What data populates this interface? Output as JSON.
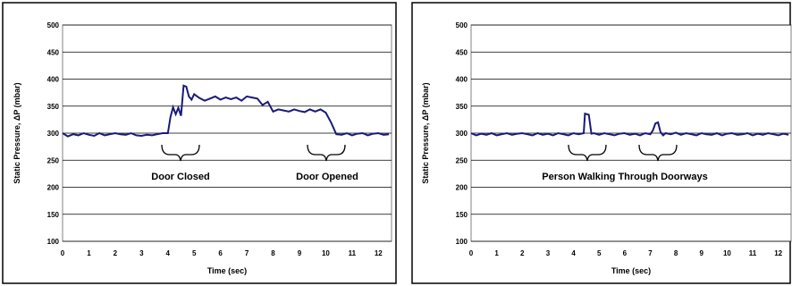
{
  "chart_data": [
    {
      "type": "line",
      "xlabel": "Time (sec)",
      "ylabel": "Static Pressure, ΔP (mbar)",
      "xlim": [
        0,
        12.5
      ],
      "ylim": [
        100,
        500
      ],
      "xticks": [
        "0",
        "1",
        "2",
        "3",
        "4",
        "5",
        "6",
        "7",
        "8",
        "9",
        "10",
        "11",
        "12"
      ],
      "yticks": [
        "100",
        "150",
        "200",
        "250",
        "300",
        "350",
        "400",
        "450",
        "500"
      ],
      "grid": true,
      "line_color": "#1a1a7a",
      "series": [
        {
          "x": [
            0,
            0.2,
            0.4,
            0.6,
            0.8,
            1.0,
            1.2,
            1.4,
            1.6,
            1.8,
            2.0,
            2.2,
            2.4,
            2.6,
            2.8,
            3.0,
            3.2,
            3.4,
            3.6,
            3.8,
            4.0,
            4.1,
            4.2,
            4.3,
            4.4,
            4.5,
            4.6,
            4.7,
            4.8,
            4.9,
            5.0,
            5.2,
            5.4,
            5.6,
            5.8,
            6.0,
            6.2,
            6.4,
            6.6,
            6.8,
            7.0,
            7.2,
            7.4,
            7.6,
            7.8,
            8.0,
            8.2,
            8.4,
            8.6,
            8.8,
            9.0,
            9.2,
            9.4,
            9.6,
            9.8,
            10.0,
            10.2,
            10.4,
            10.6,
            10.8,
            11.0,
            11.2,
            11.4,
            11.6,
            11.8,
            12.0,
            12.2,
            12.4
          ],
          "y": [
            300,
            294,
            298,
            296,
            300,
            297,
            295,
            300,
            296,
            298,
            300,
            298,
            297,
            300,
            296,
            295,
            297,
            296,
            298,
            300,
            300,
            330,
            348,
            335,
            347,
            332,
            388,
            386,
            368,
            362,
            372,
            365,
            360,
            364,
            368,
            362,
            366,
            363,
            366,
            360,
            368,
            366,
            364,
            352,
            358,
            340,
            344,
            342,
            340,
            344,
            341,
            339,
            344,
            340,
            344,
            338,
            320,
            298,
            297,
            300,
            296,
            299,
            300,
            296,
            299,
            300,
            297,
            298
          ]
        }
      ],
      "annotations": [
        "Door Closed",
        "Door Opened"
      ]
    },
    {
      "type": "line",
      "xlabel": "Time (sec)",
      "ylabel": "Static Pressure, ΔP (mbar)",
      "xlim": [
        0,
        12.5
      ],
      "ylim": [
        100,
        500
      ],
      "xticks": [
        "0",
        "1",
        "2",
        "3",
        "4",
        "5",
        "6",
        "7",
        "8",
        "9",
        "10",
        "11",
        "12"
      ],
      "yticks": [
        "100",
        "150",
        "200",
        "250",
        "300",
        "350",
        "400",
        "450",
        "500"
      ],
      "grid": true,
      "line_color": "#1a1a7a",
      "series": [
        {
          "x": [
            0,
            0.2,
            0.4,
            0.6,
            0.8,
            1.0,
            1.2,
            1.4,
            1.6,
            1.8,
            2.0,
            2.2,
            2.4,
            2.6,
            2.8,
            3.0,
            3.2,
            3.4,
            3.6,
            3.8,
            4.0,
            4.2,
            4.4,
            4.45,
            4.6,
            4.7,
            4.8,
            5.0,
            5.2,
            5.4,
            5.6,
            5.8,
            6.0,
            6.2,
            6.4,
            6.6,
            6.8,
            7.0,
            7.1,
            7.2,
            7.3,
            7.4,
            7.5,
            7.6,
            7.8,
            8.0,
            8.2,
            8.4,
            8.6,
            8.8,
            9.0,
            9.2,
            9.4,
            9.6,
            9.8,
            10.0,
            10.2,
            10.4,
            10.6,
            10.8,
            11.0,
            11.2,
            11.4,
            11.6,
            11.8,
            12.0,
            12.2,
            12.4
          ],
          "y": [
            300,
            296,
            299,
            297,
            300,
            296,
            298,
            300,
            297,
            299,
            300,
            298,
            296,
            300,
            297,
            299,
            296,
            300,
            298,
            296,
            300,
            298,
            300,
            336,
            334,
            299,
            300,
            297,
            300,
            298,
            296,
            299,
            300,
            297,
            299,
            296,
            300,
            298,
            305,
            318,
            320,
            302,
            296,
            300,
            298,
            301,
            297,
            300,
            298,
            296,
            300,
            298,
            297,
            300,
            296,
            299,
            300,
            297,
            298,
            300,
            296,
            299,
            297,
            300,
            298,
            296,
            299,
            297
          ]
        }
      ],
      "annotations": [
        "Person Walking Through Doorways"
      ]
    }
  ]
}
